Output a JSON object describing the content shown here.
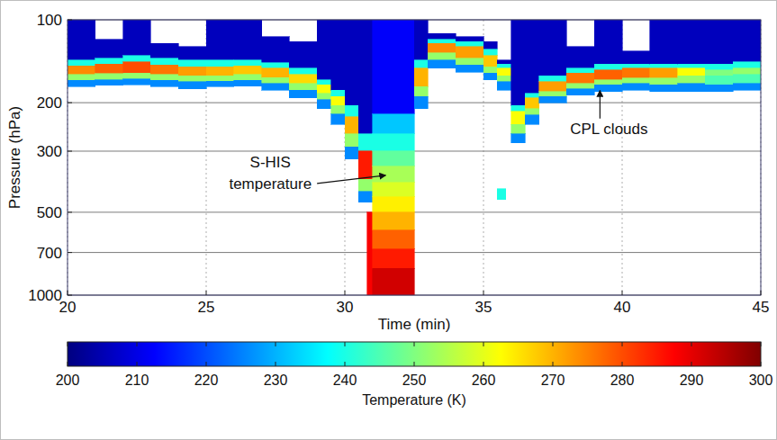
{
  "chart_data": {
    "type": "heatmap",
    "x_label": "Time (min)",
    "y_label": "Pressure (hPa)",
    "xlim": [
      20,
      45
    ],
    "xticks": [
      20,
      25,
      30,
      35,
      40,
      45
    ],
    "ylim": [
      1000,
      100
    ],
    "yticks": [
      100,
      200,
      300,
      500,
      700,
      1000
    ],
    "log": "y",
    "grid": true,
    "colorbar": {
      "lim": [
        200,
        300
      ],
      "ticks": [
        200,
        210,
        220,
        230,
        240,
        250,
        260,
        270,
        280,
        290,
        300
      ],
      "label": "Temperature (K)"
    },
    "annotations": [
      {
        "text": "S-HIS temperature",
        "x": 31.6,
        "y": 370
      },
      {
        "text": "CPL clouds",
        "x": 39.2,
        "y": 178
      }
    ],
    "cells": [
      [
        20,
        21,
        100,
        140,
        206
      ],
      [
        20,
        21,
        140,
        147,
        240
      ],
      [
        20,
        21,
        147,
        158,
        274
      ],
      [
        20,
        21,
        158,
        166,
        252
      ],
      [
        20,
        21,
        166,
        175,
        226
      ],
      [
        21,
        22,
        118,
        138,
        206
      ],
      [
        21,
        22,
        138,
        145,
        240
      ],
      [
        21,
        22,
        145,
        157,
        278
      ],
      [
        21,
        22,
        157,
        165,
        252
      ],
      [
        21,
        22,
        165,
        173,
        226
      ],
      [
        22,
        23,
        100,
        135,
        206
      ],
      [
        22,
        23,
        135,
        142,
        240
      ],
      [
        22,
        23,
        142,
        156,
        280
      ],
      [
        22,
        23,
        156,
        164,
        252
      ],
      [
        22,
        23,
        164,
        172,
        226
      ],
      [
        23,
        24,
        122,
        138,
        206
      ],
      [
        23,
        24,
        138,
        146,
        240
      ],
      [
        23,
        24,
        146,
        158,
        276
      ],
      [
        23,
        24,
        158,
        166,
        252
      ],
      [
        23,
        24,
        166,
        175,
        226
      ],
      [
        24,
        25,
        125,
        140,
        206
      ],
      [
        24,
        25,
        140,
        148,
        240
      ],
      [
        24,
        25,
        148,
        160,
        272
      ],
      [
        24,
        25,
        160,
        168,
        252
      ],
      [
        24,
        25,
        168,
        178,
        226
      ],
      [
        25,
        26,
        100,
        140,
        206
      ],
      [
        25,
        26,
        140,
        148,
        240
      ],
      [
        25,
        26,
        148,
        160,
        270
      ],
      [
        25,
        26,
        160,
        167,
        252
      ],
      [
        25,
        26,
        167,
        175,
        226
      ],
      [
        26,
        27,
        100,
        140,
        206
      ],
      [
        26,
        27,
        140,
        147,
        240
      ],
      [
        26,
        27,
        147,
        158,
        268
      ],
      [
        26,
        27,
        158,
        166,
        252
      ],
      [
        26,
        27,
        166,
        174,
        226
      ],
      [
        27,
        28,
        115,
        143,
        206
      ],
      [
        27,
        28,
        143,
        150,
        240
      ],
      [
        27,
        28,
        150,
        162,
        270
      ],
      [
        27,
        28,
        162,
        170,
        252
      ],
      [
        27,
        28,
        170,
        180,
        226
      ],
      [
        28,
        29,
        120,
        150,
        206
      ],
      [
        28,
        29,
        150,
        158,
        240
      ],
      [
        28,
        29,
        158,
        170,
        266
      ],
      [
        28,
        29,
        170,
        180,
        252
      ],
      [
        28,
        29,
        180,
        192,
        226
      ],
      [
        29,
        29.5,
        100,
        165,
        206
      ],
      [
        29,
        29.5,
        165,
        172,
        240
      ],
      [
        29,
        29.5,
        172,
        185,
        262
      ],
      [
        29,
        29.5,
        185,
        195,
        252
      ],
      [
        29,
        29.5,
        195,
        210,
        226
      ],
      [
        29.5,
        30,
        100,
        180,
        206
      ],
      [
        29.5,
        30,
        180,
        190,
        240
      ],
      [
        29.5,
        30,
        190,
        205,
        262
      ],
      [
        29.5,
        30,
        205,
        220,
        252
      ],
      [
        29.5,
        30,
        220,
        240,
        226
      ],
      [
        30,
        30.5,
        100,
        205,
        206
      ],
      [
        30,
        30.5,
        205,
        225,
        240
      ],
      [
        30,
        30.5,
        225,
        260,
        270
      ],
      [
        30,
        30.5,
        260,
        290,
        252
      ],
      [
        30,
        30.5,
        290,
        320,
        226
      ],
      [
        30.5,
        31,
        100,
        260,
        206
      ],
      [
        30.5,
        31,
        260,
        300,
        240
      ],
      [
        30.5,
        31,
        300,
        380,
        285
      ],
      [
        30.5,
        31,
        380,
        420,
        252
      ],
      [
        30.5,
        31,
        420,
        460,
        226
      ],
      [
        30.8,
        31,
        500,
        1000,
        288
      ],
      [
        31,
        32.5,
        100,
        220,
        212
      ],
      [
        31,
        32.5,
        220,
        260,
        232
      ],
      [
        31,
        32.5,
        260,
        300,
        240
      ],
      [
        31,
        32.5,
        300,
        340,
        247
      ],
      [
        31,
        32.5,
        340,
        390,
        254
      ],
      [
        31,
        32.5,
        390,
        440,
        259
      ],
      [
        31,
        32.5,
        440,
        500,
        264
      ],
      [
        31,
        32.5,
        500,
        580,
        270
      ],
      [
        31,
        32.5,
        580,
        680,
        278
      ],
      [
        31,
        32.5,
        680,
        800,
        285
      ],
      [
        31,
        32.5,
        800,
        1000,
        292
      ],
      [
        32.5,
        33,
        100,
        140,
        206
      ],
      [
        32.5,
        33,
        140,
        150,
        240
      ],
      [
        32.5,
        33,
        150,
        175,
        270
      ],
      [
        32.5,
        33,
        175,
        190,
        252
      ],
      [
        32.5,
        33,
        190,
        210,
        226
      ],
      [
        33,
        34,
        112,
        118,
        206
      ],
      [
        33,
        34,
        118,
        122,
        240
      ],
      [
        33,
        34,
        122,
        132,
        274
      ],
      [
        33,
        34,
        132,
        140,
        252
      ],
      [
        33,
        34,
        140,
        150,
        226
      ],
      [
        34,
        35,
        115,
        120,
        206
      ],
      [
        34,
        35,
        120,
        125,
        240
      ],
      [
        34,
        35,
        125,
        138,
        272
      ],
      [
        34,
        35,
        138,
        146,
        252
      ],
      [
        34,
        35,
        146,
        155,
        226
      ],
      [
        35,
        35.5,
        120,
        128,
        206
      ],
      [
        35,
        35.5,
        128,
        135,
        240
      ],
      [
        35,
        35.5,
        135,
        148,
        268
      ],
      [
        35,
        35.5,
        148,
        156,
        252
      ],
      [
        35,
        35.5,
        156,
        165,
        226
      ],
      [
        35.5,
        36,
        140,
        145,
        206
      ],
      [
        35.5,
        36,
        145,
        150,
        240
      ],
      [
        35.5,
        36,
        150,
        160,
        262
      ],
      [
        35.5,
        36,
        160,
        168,
        252
      ],
      [
        35.5,
        36,
        168,
        180,
        226
      ],
      [
        35.5,
        35.8,
        410,
        450,
        240
      ],
      [
        36,
        36.5,
        100,
        205,
        206
      ],
      [
        36,
        36.5,
        205,
        215,
        240
      ],
      [
        36,
        36.5,
        215,
        240,
        262
      ],
      [
        36,
        36.5,
        240,
        260,
        252
      ],
      [
        36,
        36.5,
        260,
        280,
        226
      ],
      [
        36.5,
        37,
        100,
        185,
        206
      ],
      [
        36.5,
        37,
        185,
        192,
        240
      ],
      [
        36.5,
        37,
        192,
        210,
        268
      ],
      [
        36.5,
        37,
        210,
        222,
        252
      ],
      [
        36.5,
        37,
        222,
        240,
        226
      ],
      [
        37,
        38,
        100,
        160,
        206
      ],
      [
        37,
        38,
        160,
        168,
        240
      ],
      [
        37,
        38,
        168,
        182,
        272
      ],
      [
        37,
        38,
        182,
        190,
        252
      ],
      [
        37,
        38,
        190,
        200,
        226
      ],
      [
        38,
        39,
        125,
        150,
        206
      ],
      [
        38,
        39,
        150,
        156,
        240
      ],
      [
        38,
        39,
        156,
        170,
        276
      ],
      [
        38,
        39,
        170,
        178,
        252
      ],
      [
        38,
        39,
        178,
        188,
        226
      ],
      [
        39,
        40,
        100,
        145,
        206
      ],
      [
        39,
        40,
        145,
        152,
        240
      ],
      [
        39,
        40,
        152,
        165,
        278
      ],
      [
        39,
        40,
        165,
        172,
        252
      ],
      [
        39,
        40,
        172,
        182,
        226
      ],
      [
        40,
        41,
        130,
        145,
        206
      ],
      [
        40,
        41,
        145,
        150,
        240
      ],
      [
        40,
        41,
        150,
        163,
        276
      ],
      [
        40,
        41,
        163,
        170,
        252
      ],
      [
        40,
        41,
        170,
        180,
        226
      ],
      [
        41,
        42,
        100,
        145,
        206
      ],
      [
        41,
        42,
        145,
        150,
        240
      ],
      [
        41,
        42,
        150,
        163,
        272
      ],
      [
        41,
        42,
        163,
        172,
        252
      ],
      [
        41,
        42,
        172,
        182,
        226
      ],
      [
        42,
        43,
        100,
        145,
        206
      ],
      [
        42,
        43,
        145,
        150,
        240
      ],
      [
        42,
        43,
        150,
        160,
        262
      ],
      [
        42,
        43,
        160,
        170,
        252
      ],
      [
        42,
        43,
        170,
        182,
        226
      ],
      [
        43,
        44,
        100,
        145,
        206
      ],
      [
        43,
        44,
        145,
        152,
        240
      ],
      [
        43,
        44,
        152,
        160,
        250
      ],
      [
        43,
        44,
        160,
        172,
        245
      ],
      [
        43,
        44,
        172,
        182,
        226
      ],
      [
        44,
        45,
        100,
        142,
        206
      ],
      [
        44,
        45,
        142,
        150,
        240
      ],
      [
        44,
        45,
        150,
        158,
        252
      ],
      [
        44,
        45,
        158,
        170,
        245
      ],
      [
        44,
        45,
        170,
        180,
        226
      ]
    ]
  }
}
